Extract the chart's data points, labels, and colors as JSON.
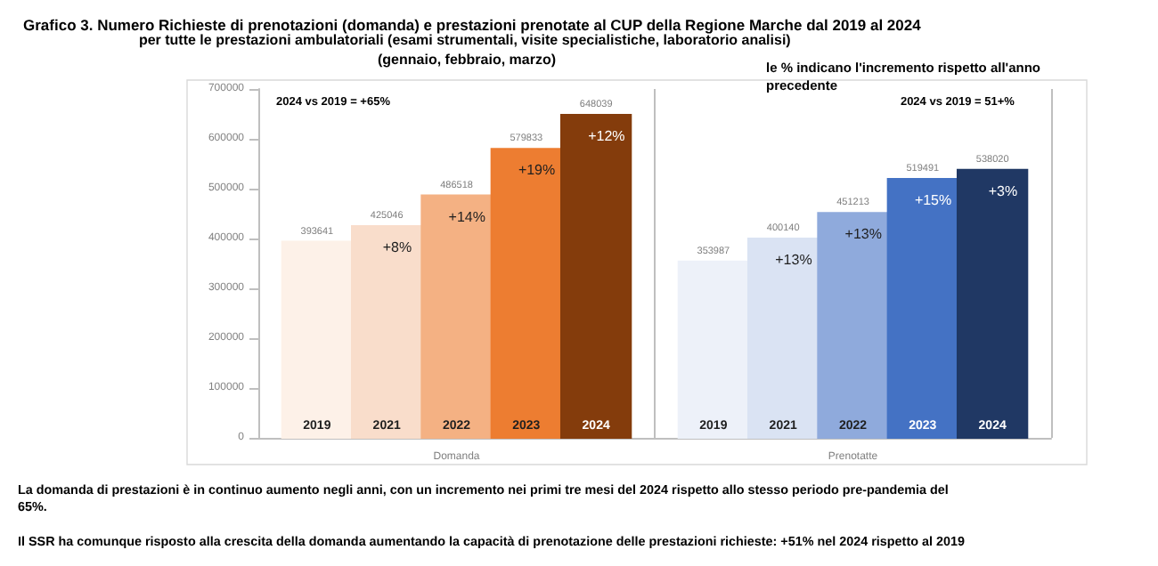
{
  "chart_data": {
    "type": "bar",
    "title": "Grafico 3. Numero Richieste di prenotazioni (domanda) e prestazioni prenotate al CUP della Regione Marche dal 2019 al 2024",
    "subtitle": "per tutte le prestazioni ambulatoriali (esami strumentali, visite specialistiche, laboratorio analisi) (gennaio, febbraio, marzo)",
    "categories": [
      "Domanda",
      "Prenotatte"
    ],
    "series": [
      {
        "name": "2019",
        "colors": [
          "#fdf1e8",
          "#edf1f9"
        ],
        "values": [
          393641,
          353987
        ]
      },
      {
        "name": "2021",
        "colors": [
          "#f9ddcb",
          "#dae3f3"
        ],
        "values": [
          425046,
          400140
        ]
      },
      {
        "name": "2022",
        "colors": [
          "#f4b183",
          "#8faadc"
        ],
        "values": [
          486518,
          451213
        ]
      },
      {
        "name": "2023",
        "colors": [
          "#ed7d31",
          "#4472c4"
        ],
        "values": [
          579833,
          519491
        ]
      },
      {
        "name": "2024",
        "colors": [
          "#843c0c",
          "#203864"
        ],
        "values": [
          648039,
          538020
        ]
      }
    ],
    "ylim": [
      0,
      700000
    ],
    "yticks": [
      0,
      100000,
      200000,
      300000,
      400000,
      500000,
      600000,
      700000
    ],
    "data_labels": true,
    "grid": false,
    "legend": false,
    "annotations": [
      "+8%",
      "+14%",
      "+19%",
      "+12%",
      "+13%",
      "+13%",
      "+15%",
      "+3%",
      "2024 vs 2019 = +65%",
      "2024 vs 2019 = 51+%",
      "le % indicano l'incremento rispetto all'anno precedente",
      "La domanda di prestazioni è in continuo aumento negli anni, con un incremento nei primi tre mesi del 2024 rispetto allo stesso periodo pre-pandemia del 65%.",
      "Il SSR ha comunque risposto alla crescita della domanda aumentando la capacità di prenotazione delle prestazioni richieste: +51% nel 2024 rispetto al 2019"
    ]
  }
}
